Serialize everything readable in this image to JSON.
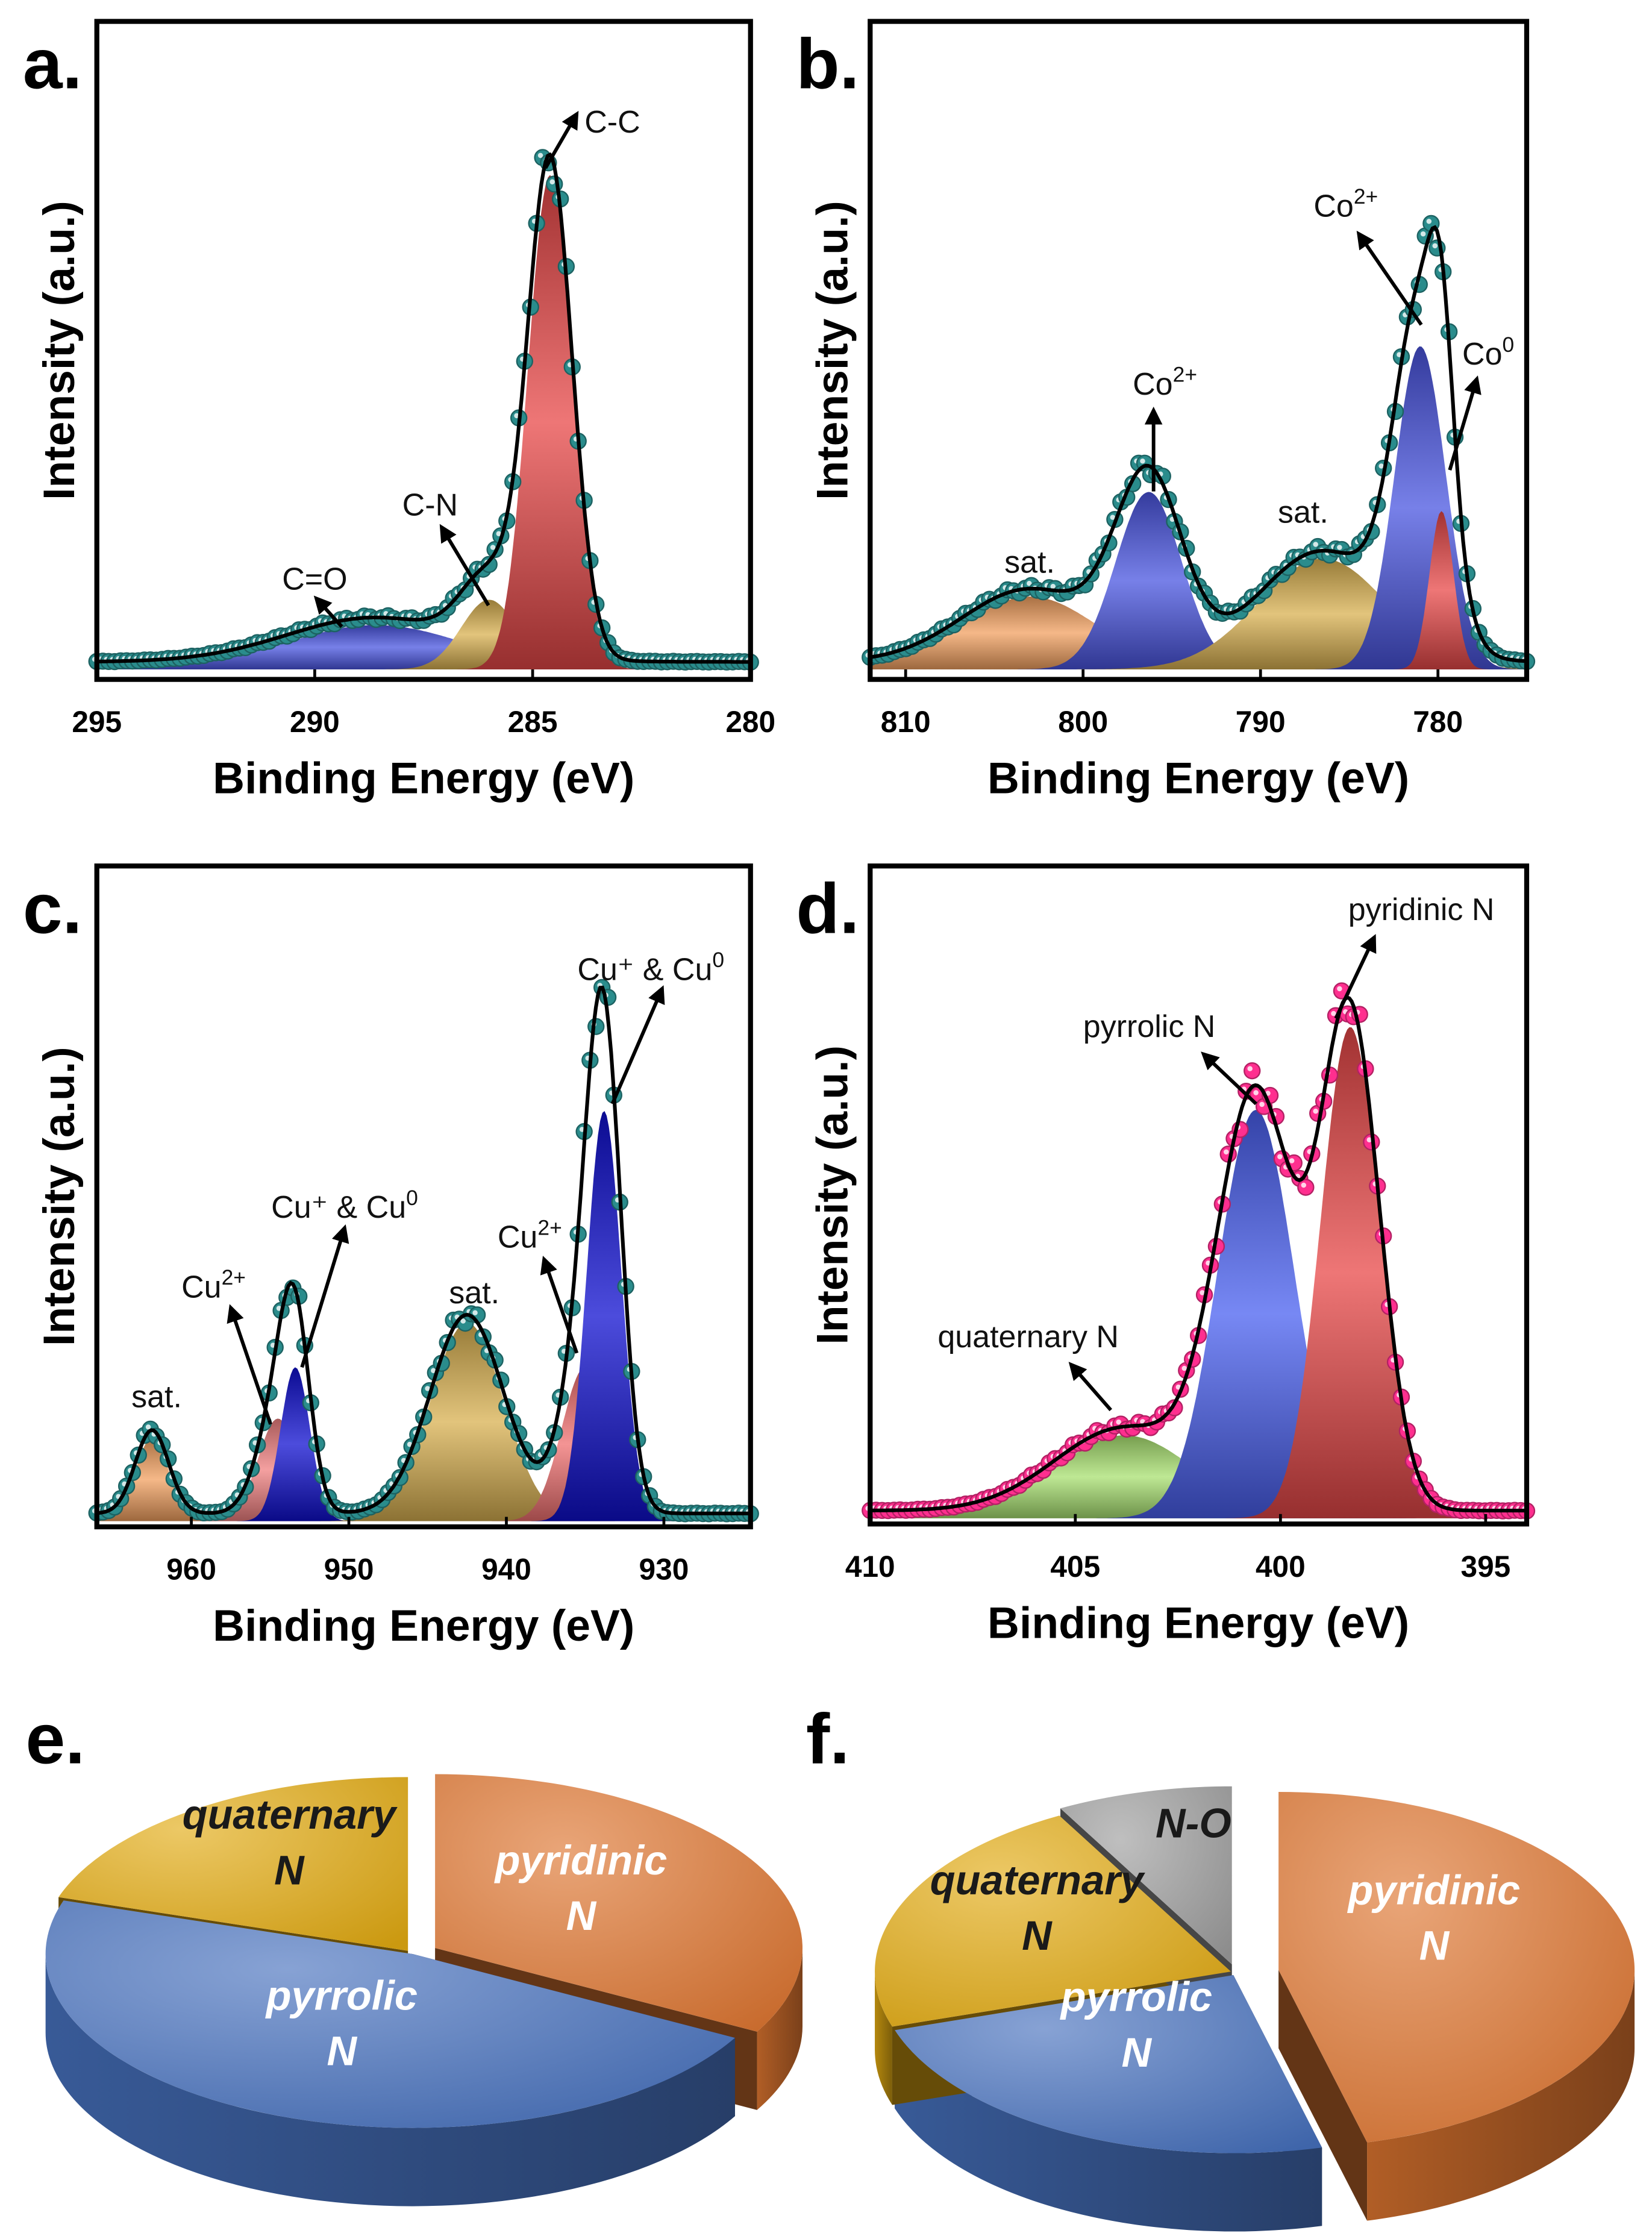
{
  "chart_data": [
    {
      "panel": "a.",
      "type": "line",
      "xlabel": "Binding Energy (eV)",
      "ylabel": "Intensity (a.u.)",
      "xlim": [
        295,
        280
      ],
      "xticks": [
        "295",
        "290",
        "285",
        "280"
      ],
      "ylim": [
        0,
        1
      ],
      "marker_color": "#2a8c8c",
      "components": [
        {
          "center": 288.6,
          "height": 0.07,
          "fwhm": 4.8,
          "color": "#4a55e0"
        },
        {
          "center": 286.0,
          "height": 0.11,
          "fwhm": 1.5,
          "color": "#d8b050"
        },
        {
          "center": 284.6,
          "height": 0.78,
          "fwhm": 1.2,
          "color": "#e84848"
        }
      ],
      "annotations": [
        {
          "text": "C-C",
          "sup": ""
        },
        {
          "text": "C-N",
          "sup": ""
        },
        {
          "text": "C=O",
          "sup": ""
        }
      ]
    },
    {
      "panel": "b.",
      "type": "line",
      "xlabel": "Binding Energy (eV)",
      "ylabel": "Intensity (a.u.)",
      "xlim": [
        812,
        775
      ],
      "xticks": [
        "810",
        "800",
        "790",
        "780"
      ],
      "ylim": [
        0,
        1
      ],
      "marker_color": "#2a8c8c",
      "components": [
        {
          "center": 803.0,
          "height": 0.115,
          "fwhm": 9.0,
          "color": "#f2a060"
        },
        {
          "center": 796.3,
          "height": 0.28,
          "fwhm": 4.4,
          "color": "#4a55e0"
        },
        {
          "center": 786.5,
          "height": 0.175,
          "fwhm": 8.5,
          "color": "#d8b050"
        },
        {
          "center": 781.0,
          "height": 0.51,
          "fwhm": 3.4,
          "color": "#4a55e0"
        },
        {
          "center": 779.8,
          "height": 0.25,
          "fwhm": 1.6,
          "color": "#e84848"
        }
      ],
      "annotations": [
        {
          "text": "Co",
          "sup": "2+"
        },
        {
          "text": "Co",
          "sup": "0"
        },
        {
          "text": "Co",
          "sup": "2+"
        },
        {
          "text": "sat.",
          "sup": ""
        },
        {
          "text": "sat.",
          "sup": ""
        }
      ]
    },
    {
      "panel": "c.",
      "type": "line",
      "xlabel": "Binding Energy (eV)",
      "ylabel": "Intensity (a.u.)",
      "xlim": [
        966,
        924.5
      ],
      "xticks": [
        "960",
        "950",
        "940",
        "930"
      ],
      "ylim": [
        0,
        1
      ],
      "marker_color": "#2a8c8c",
      "components": [
        {
          "center": 962.5,
          "height": 0.13,
          "fwhm": 2.5,
          "color": "#f2a060"
        },
        {
          "center": 954.5,
          "height": 0.16,
          "fwhm": 3.0,
          "color": "#f08080"
        },
        {
          "center": 953.4,
          "height": 0.24,
          "fwhm": 2.2,
          "color": "#1010d0"
        },
        {
          "center": 942.5,
          "height": 0.31,
          "fwhm": 5.5,
          "color": "#d8b050"
        },
        {
          "center": 935.0,
          "height": 0.24,
          "fwhm": 3.5,
          "color": "#f07070"
        },
        {
          "center": 933.8,
          "height": 0.64,
          "fwhm": 2.6,
          "color": "#1010d0"
        }
      ],
      "annotations": [
        {
          "text": "Cu⁺ & Cu",
          "sup": "0"
        },
        {
          "text": "Cu",
          "sup": "2+"
        },
        {
          "text": "sat.",
          "sup": ""
        },
        {
          "text": "Cu⁺ & Cu",
          "sup": "0"
        },
        {
          "text": "Cu",
          "sup": "2+"
        },
        {
          "text": "sat.",
          "sup": ""
        }
      ]
    },
    {
      "panel": "d.",
      "type": "line",
      "xlabel": "Binding Energy (eV)",
      "ylabel": "Intensity (a.u.)",
      "xlim": [
        410,
        394
      ],
      "xticks": [
        "410",
        "405",
        "400",
        "395"
      ],
      "ylim": [
        0,
        1
      ],
      "marker_color": "#ff2f8f",
      "components": [
        {
          "center": 403.8,
          "height": 0.13,
          "fwhm": 4.0,
          "color": "#a8e070"
        },
        {
          "center": 400.6,
          "height": 0.64,
          "fwhm": 2.2,
          "color": "#4a60f0"
        },
        {
          "center": 398.3,
          "height": 0.77,
          "fwhm": 1.7,
          "color": "#e84848"
        }
      ],
      "annotations": [
        {
          "text": "pyridinic N",
          "sup": ""
        },
        {
          "text": "pyrrolic N",
          "sup": ""
        },
        {
          "text": "quaternary N",
          "sup": ""
        }
      ]
    },
    {
      "panel": "e.",
      "type": "pie",
      "slices": [
        {
          "label_lines": [
            "pyridinic",
            "N"
          ],
          "value": 33,
          "color": "#dd7530",
          "label_color": "#ffffff"
        },
        {
          "label_lines": [
            "pyrrolic",
            "N"
          ],
          "value": 47,
          "color": "#4670bd",
          "label_color": "#ffffff"
        },
        {
          "label_lines": [
            "quaternary",
            "N"
          ],
          "value": 20,
          "color": "#e2aa12",
          "label_color": "#1a1a1a"
        }
      ]
    },
    {
      "panel": "f.",
      "type": "pie",
      "slices": [
        {
          "label_lines": [
            "pyridinic",
            "N"
          ],
          "value": 46,
          "color": "#dd7530",
          "label_color": "#ffffff"
        },
        {
          "label_lines": [
            "pyrrolic",
            "N"
          ],
          "value": 24,
          "color": "#4670bd",
          "label_color": "#ffffff"
        },
        {
          "label_lines": [
            "quaternary",
            "N"
          ],
          "value": 22,
          "color": "#e2aa12",
          "label_color": "#1a1a1a"
        },
        {
          "label_lines": [
            "N-O"
          ],
          "value": 8,
          "color": "#9c9c9c",
          "label_color": "#1a1a1a"
        }
      ]
    }
  ]
}
